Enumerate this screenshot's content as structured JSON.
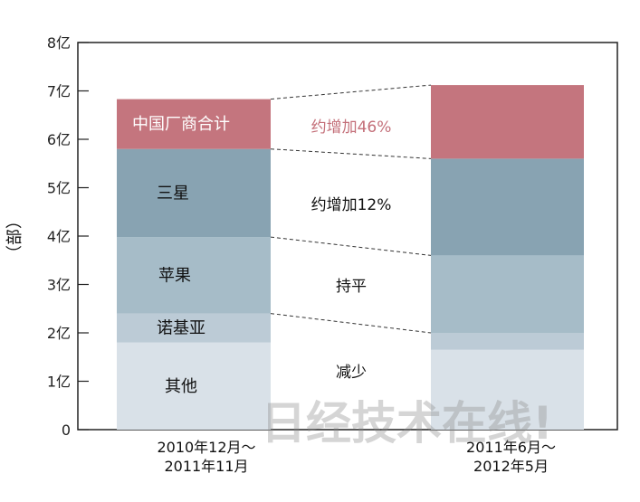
{
  "chart_data": {
    "type": "bar",
    "stacked": true,
    "categories": [
      [
        "2010年12月～",
        "2011年11月"
      ],
      [
        "2011年6月～",
        "2012年5月"
      ]
    ],
    "ylabel": "（部）",
    "ylim": [
      0,
      8
    ],
    "yticks": [
      {
        "v": 0,
        "label": "0"
      },
      {
        "v": 1,
        "label": "1亿"
      },
      {
        "v": 2,
        "label": "2亿"
      },
      {
        "v": 3,
        "label": "3亿"
      },
      {
        "v": 4,
        "label": "4亿"
      },
      {
        "v": 5,
        "label": "5亿"
      },
      {
        "v": 6,
        "label": "6亿"
      },
      {
        "v": 7,
        "label": "7亿"
      },
      {
        "v": 8,
        "label": "8亿"
      }
    ],
    "series": [
      {
        "name": "其他",
        "color": "#d9e1e8",
        "values": [
          1.8,
          1.65
        ]
      },
      {
        "name": "诺基亚",
        "color": "#bccbd6",
        "values": [
          0.6,
          0.35
        ]
      },
      {
        "name": "苹果",
        "color": "#a6bcc8",
        "values": [
          1.58,
          1.6
        ]
      },
      {
        "name": "三星",
        "color": "#88a3b2",
        "values": [
          1.82,
          2.0
        ]
      },
      {
        "name": "中国厂商合计",
        "color": "#c4757e",
        "values": [
          1.03,
          1.52
        ]
      }
    ],
    "annotations": [
      "约增加46%",
      "约增加12%",
      "持平",
      "减少"
    ],
    "grid": false,
    "watermark": "日经技术在线!"
  }
}
